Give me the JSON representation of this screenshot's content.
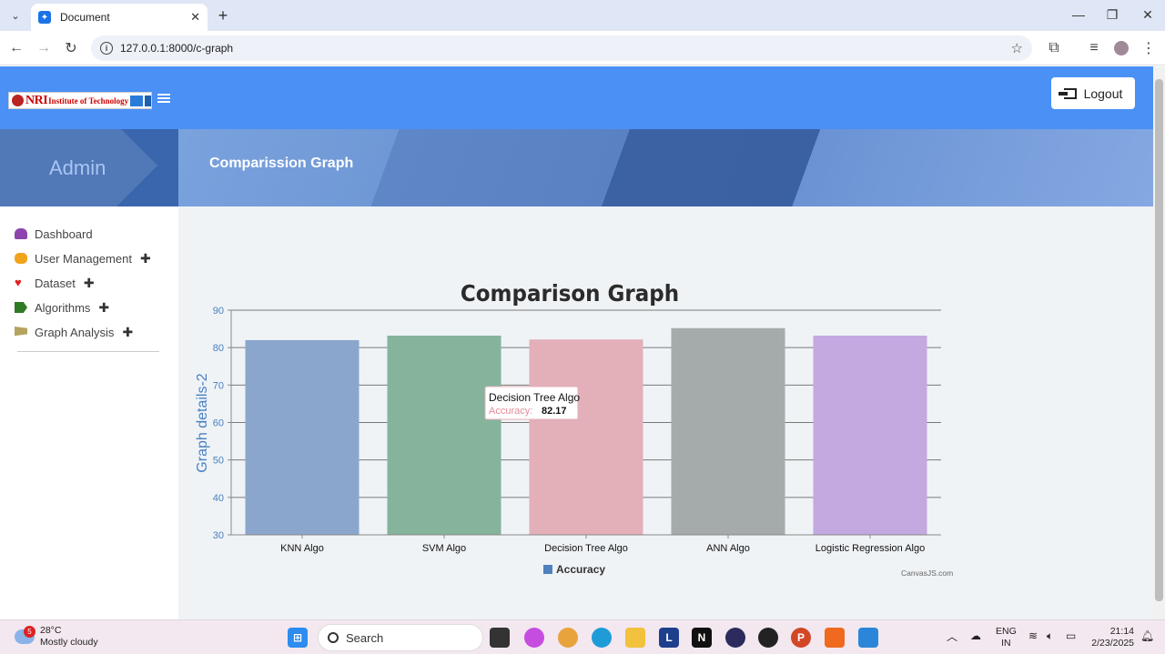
{
  "browser": {
    "tab_title": "Document",
    "url": "127.0.0.1:8000/c-graph"
  },
  "header": {
    "logo_text_primary": "NRI",
    "logo_text_secondary": "Institute of Technology",
    "logout_label": "Logout"
  },
  "banner": {
    "sidebar_title": "Admin",
    "page_title": "Comparission Graph"
  },
  "sidebar": {
    "items": [
      {
        "label": "Dashboard",
        "icon": "dashboard-icon",
        "color": "#8e44ad",
        "expandable": false
      },
      {
        "label": "User Management",
        "icon": "users-icon",
        "color": "#f1a31c",
        "expandable": true
      },
      {
        "label": "Dataset",
        "icon": "heart-icon",
        "color": "#e02020",
        "expandable": true
      },
      {
        "label": "Algorithms",
        "icon": "tags-icon",
        "color": "#2f7a24",
        "expandable": true
      },
      {
        "label": "Graph Analysis",
        "icon": "flag-icon",
        "color": "#b5a360",
        "expandable": true
      }
    ],
    "plus_symbol": "✚"
  },
  "chart_data": {
    "type": "bar",
    "title": "Comparison Graph",
    "xlabel": "",
    "ylabel": "Graph details-2",
    "ylim": [
      30,
      90
    ],
    "yticks": [
      30,
      40,
      50,
      60,
      70,
      80,
      90
    ],
    "categories": [
      "KNN Algo",
      "SVM Algo",
      "Decision Tree Algo",
      "ANN Algo",
      "Logistic Regression Algo"
    ],
    "series": [
      {
        "name": "Accuracy",
        "values": [
          82.0,
          83.2,
          82.17,
          85.2,
          83.2
        ]
      }
    ],
    "bar_colors": [
      "#8aa6cc",
      "#86b39c",
      "#e3afb8",
      "#a5aaaa",
      "#c3a9e0"
    ],
    "legend": "bottom",
    "grid": true,
    "tooltip": {
      "category": "Decision Tree Algo",
      "label": "Accuracy:",
      "value": "82.17"
    },
    "credit": "CanvasJS.com"
  },
  "taskbar": {
    "weather_temp": "28°C",
    "weather_desc": "Mostly cloudy",
    "weather_badge": "5",
    "search_label": "Search",
    "lang_top": "ENG",
    "lang_bottom": "IN",
    "time": "21:14",
    "date": "2/23/2025"
  }
}
